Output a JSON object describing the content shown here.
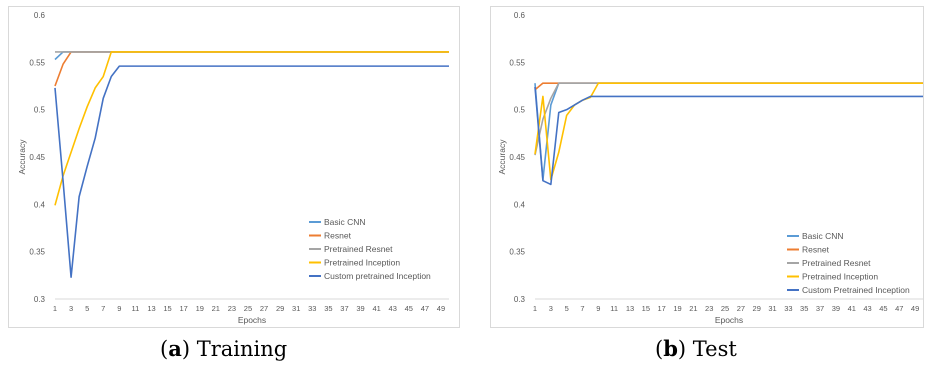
{
  "chart_data": [
    {
      "type": "line",
      "caption_letter": "a",
      "caption_text": "Training",
      "xlabel": "Epochs",
      "ylabel": "Accuracy",
      "x": [
        1,
        2,
        3,
        4,
        5,
        6,
        7,
        8,
        9,
        10,
        11,
        12,
        13,
        14,
        15,
        16,
        17,
        18,
        19,
        20,
        21,
        22,
        23,
        24,
        25,
        26,
        27,
        28,
        29,
        30,
        31,
        32,
        33,
        34,
        35,
        36,
        37,
        38,
        39,
        40,
        41,
        42,
        43,
        44,
        45,
        46,
        47,
        48,
        49,
        50
      ],
      "xtick_labels": [
        "1",
        "3",
        "5",
        "7",
        "9",
        "11",
        "13",
        "15",
        "17",
        "19",
        "21",
        "23",
        "25",
        "27",
        "29",
        "31",
        "33",
        "35",
        "37",
        "39",
        "41",
        "43",
        "45",
        "47",
        "49"
      ],
      "ylim": [
        0.3,
        0.6
      ],
      "ytick_labels": [
        "0.3",
        "0.35",
        "0.4",
        "0.45",
        "0.5",
        "0.55",
        "0.6"
      ],
      "legend_position": "bottom-right",
      "series": [
        {
          "name": "Basic CNN",
          "color": "#5B9BD5",
          "head": [
            0.553,
            0.561
          ],
          "tail": 0.561
        },
        {
          "name": "Resnet",
          "color": "#ED7D31",
          "head": [
            0.525,
            0.548,
            0.561
          ],
          "tail": 0.561
        },
        {
          "name": "Pretrained Resnet",
          "color": "#A5A5A5",
          "head": [
            0.561
          ],
          "tail": 0.561
        },
        {
          "name": "Pretrained Inception",
          "color": "#FFC000",
          "head": [
            0.399,
            0.43,
            0.455,
            0.48,
            0.503,
            0.523,
            0.535,
            0.561
          ],
          "tail": 0.561
        },
        {
          "name": "Custom pretrained Inception",
          "color": "#4472C4",
          "head": [
            0.523,
            0.425,
            0.323,
            0.408,
            0.44,
            0.47,
            0.512,
            0.535,
            0.546
          ],
          "tail": 0.546
        }
      ]
    },
    {
      "type": "line",
      "caption_letter": "b",
      "caption_text": "Test",
      "xlabel": "Epochs",
      "ylabel": "Accuracy",
      "x": [
        1,
        2,
        3,
        4,
        5,
        6,
        7,
        8,
        9,
        10,
        11,
        12,
        13,
        14,
        15,
        16,
        17,
        18,
        19,
        20,
        21,
        22,
        23,
        24,
        25,
        26,
        27,
        28,
        29,
        30,
        31,
        32,
        33,
        34,
        35,
        36,
        37,
        38,
        39,
        40,
        41,
        42,
        43,
        44,
        45,
        46,
        47,
        48,
        49,
        50
      ],
      "xtick_labels": [
        "1",
        "3",
        "5",
        "7",
        "9",
        "11",
        "13",
        "15",
        "17",
        "19",
        "21",
        "23",
        "25",
        "27",
        "29",
        "31",
        "33",
        "35",
        "37",
        "39",
        "41",
        "43",
        "45",
        "47",
        "49"
      ],
      "ylim": [
        0.3,
        0.6
      ],
      "ytick_labels": [
        "0.3",
        "0.35",
        "0.4",
        "0.45",
        "0.5",
        "0.55",
        "0.6"
      ],
      "legend_position": "bottom-right",
      "series": [
        {
          "name": "Basic CNN",
          "color": "#5B9BD5",
          "head": [
            0.528,
            0.426,
            0.505,
            0.528
          ],
          "tail": 0.528
        },
        {
          "name": "Resnet",
          "color": "#ED7D31",
          "head": [
            0.521,
            0.528,
            0.528
          ],
          "tail": 0.528
        },
        {
          "name": "Pretrained Resnet",
          "color": "#A5A5A5",
          "head": [
            0.452,
            0.49,
            0.512,
            0.528
          ],
          "tail": 0.528
        },
        {
          "name": "Pretrained Inception",
          "color": "#FFC000",
          "head": [
            0.453,
            0.514,
            0.426,
            0.455,
            0.494,
            0.505,
            0.51,
            0.513,
            0.528
          ],
          "tail": 0.528
        },
        {
          "name": "Custom Pretrained Inception",
          "color": "#4472C4",
          "head": [
            0.524,
            0.425,
            0.421,
            0.497,
            0.5,
            0.505,
            0.51,
            0.514
          ],
          "tail": 0.514
        }
      ]
    }
  ]
}
